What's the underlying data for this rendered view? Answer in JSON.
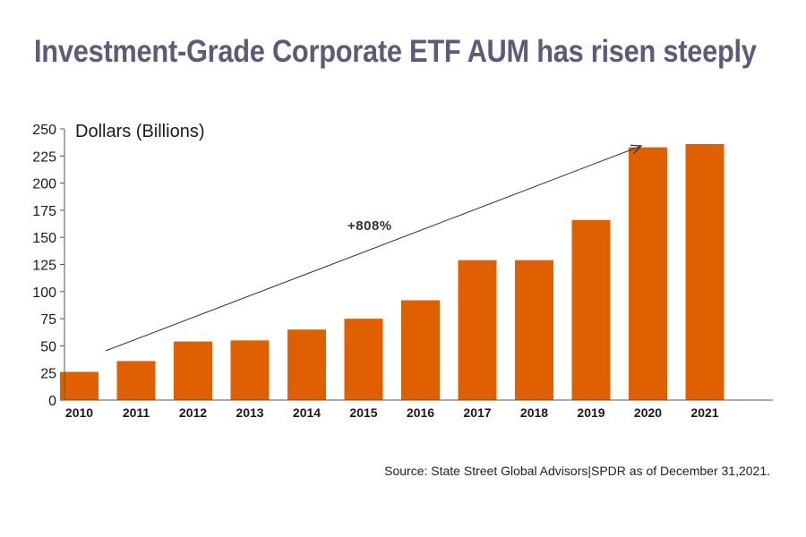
{
  "chart_data": {
    "type": "bar",
    "title": "Investment-Grade Corporate ETF AUM has risen steeply",
    "ylabel": "Dollars (Billions)",
    "xlabel": "",
    "categories": [
      "2010",
      "2011",
      "2012",
      "2013",
      "2014",
      "2015",
      "2016",
      "2017",
      "2018",
      "2019",
      "2020",
      "2021"
    ],
    "values": [
      26,
      36,
      54,
      55,
      65,
      75,
      92,
      129,
      129,
      166,
      233,
      236
    ],
    "ylim": [
      0,
      250
    ],
    "yticks": [
      "0",
      "25",
      "50",
      "75",
      "100",
      "125",
      "150",
      "175",
      "200",
      "225",
      "250"
    ],
    "grid": false,
    "legend": "none",
    "bar_color": "#e06000",
    "annotation": "+808%",
    "source": "Source: State Street Global Advisors|SPDR as of December 31,2021."
  }
}
